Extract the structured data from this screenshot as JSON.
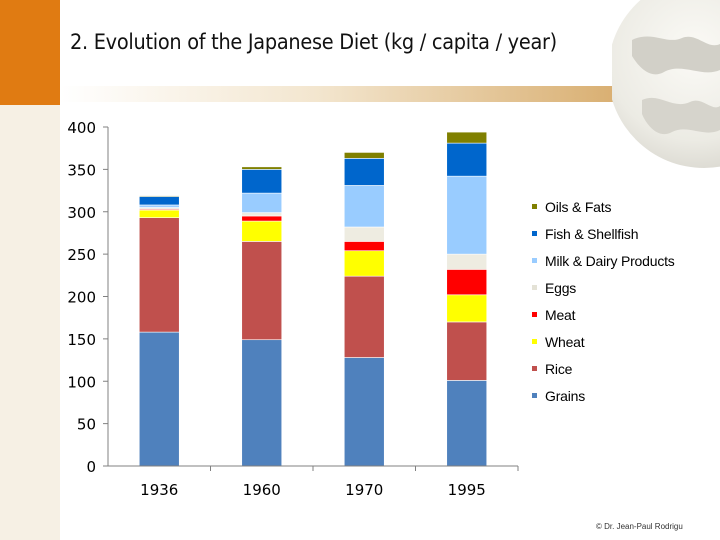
{
  "slide": {
    "title": "2. Evolution of the Japanese Diet (kg / capita / year)",
    "credit": "© Dr. Jean-Paul Rodrigu"
  },
  "chart_data": {
    "type": "bar",
    "stacked": true,
    "title": "2. Evolution of the Japanese Diet (kg / capita / year)",
    "xlabel": "",
    "ylabel": "",
    "ylim": [
      0,
      400
    ],
    "yticks": [
      "0",
      "50",
      "100",
      "150",
      "200",
      "250",
      "300",
      "350",
      "400"
    ],
    "categories": [
      "1936",
      "1960",
      "1970",
      "1995"
    ],
    "legend_position": "right",
    "series": [
      {
        "name": "Grains",
        "color": "#4f81bd",
        "values": [
          158,
          149,
          128,
          101
        ]
      },
      {
        "name": "Rice",
        "color": "#c0504d",
        "values": [
          135,
          116,
          96,
          69
        ]
      },
      {
        "name": "Wheat",
        "color": "#ffff00",
        "values": [
          9,
          24,
          30,
          32
        ]
      },
      {
        "name": "Meat",
        "color": "#ff0000",
        "values": [
          1,
          6,
          11,
          30
        ]
      },
      {
        "name": "Eggs",
        "color": "#eeece1",
        "values": [
          2,
          4,
          17,
          18
        ]
      },
      {
        "name": "Milk & Dairy Products",
        "color": "#99ccff",
        "values": [
          3,
          23,
          49,
          92
        ]
      },
      {
        "name": "Fish & Shellfish",
        "color": "#0066cc",
        "values": [
          10,
          28,
          32,
          39
        ]
      },
      {
        "name": "Oils & Fats",
        "color": "#808000",
        "values": [
          1,
          3,
          7,
          13
        ]
      }
    ]
  }
}
